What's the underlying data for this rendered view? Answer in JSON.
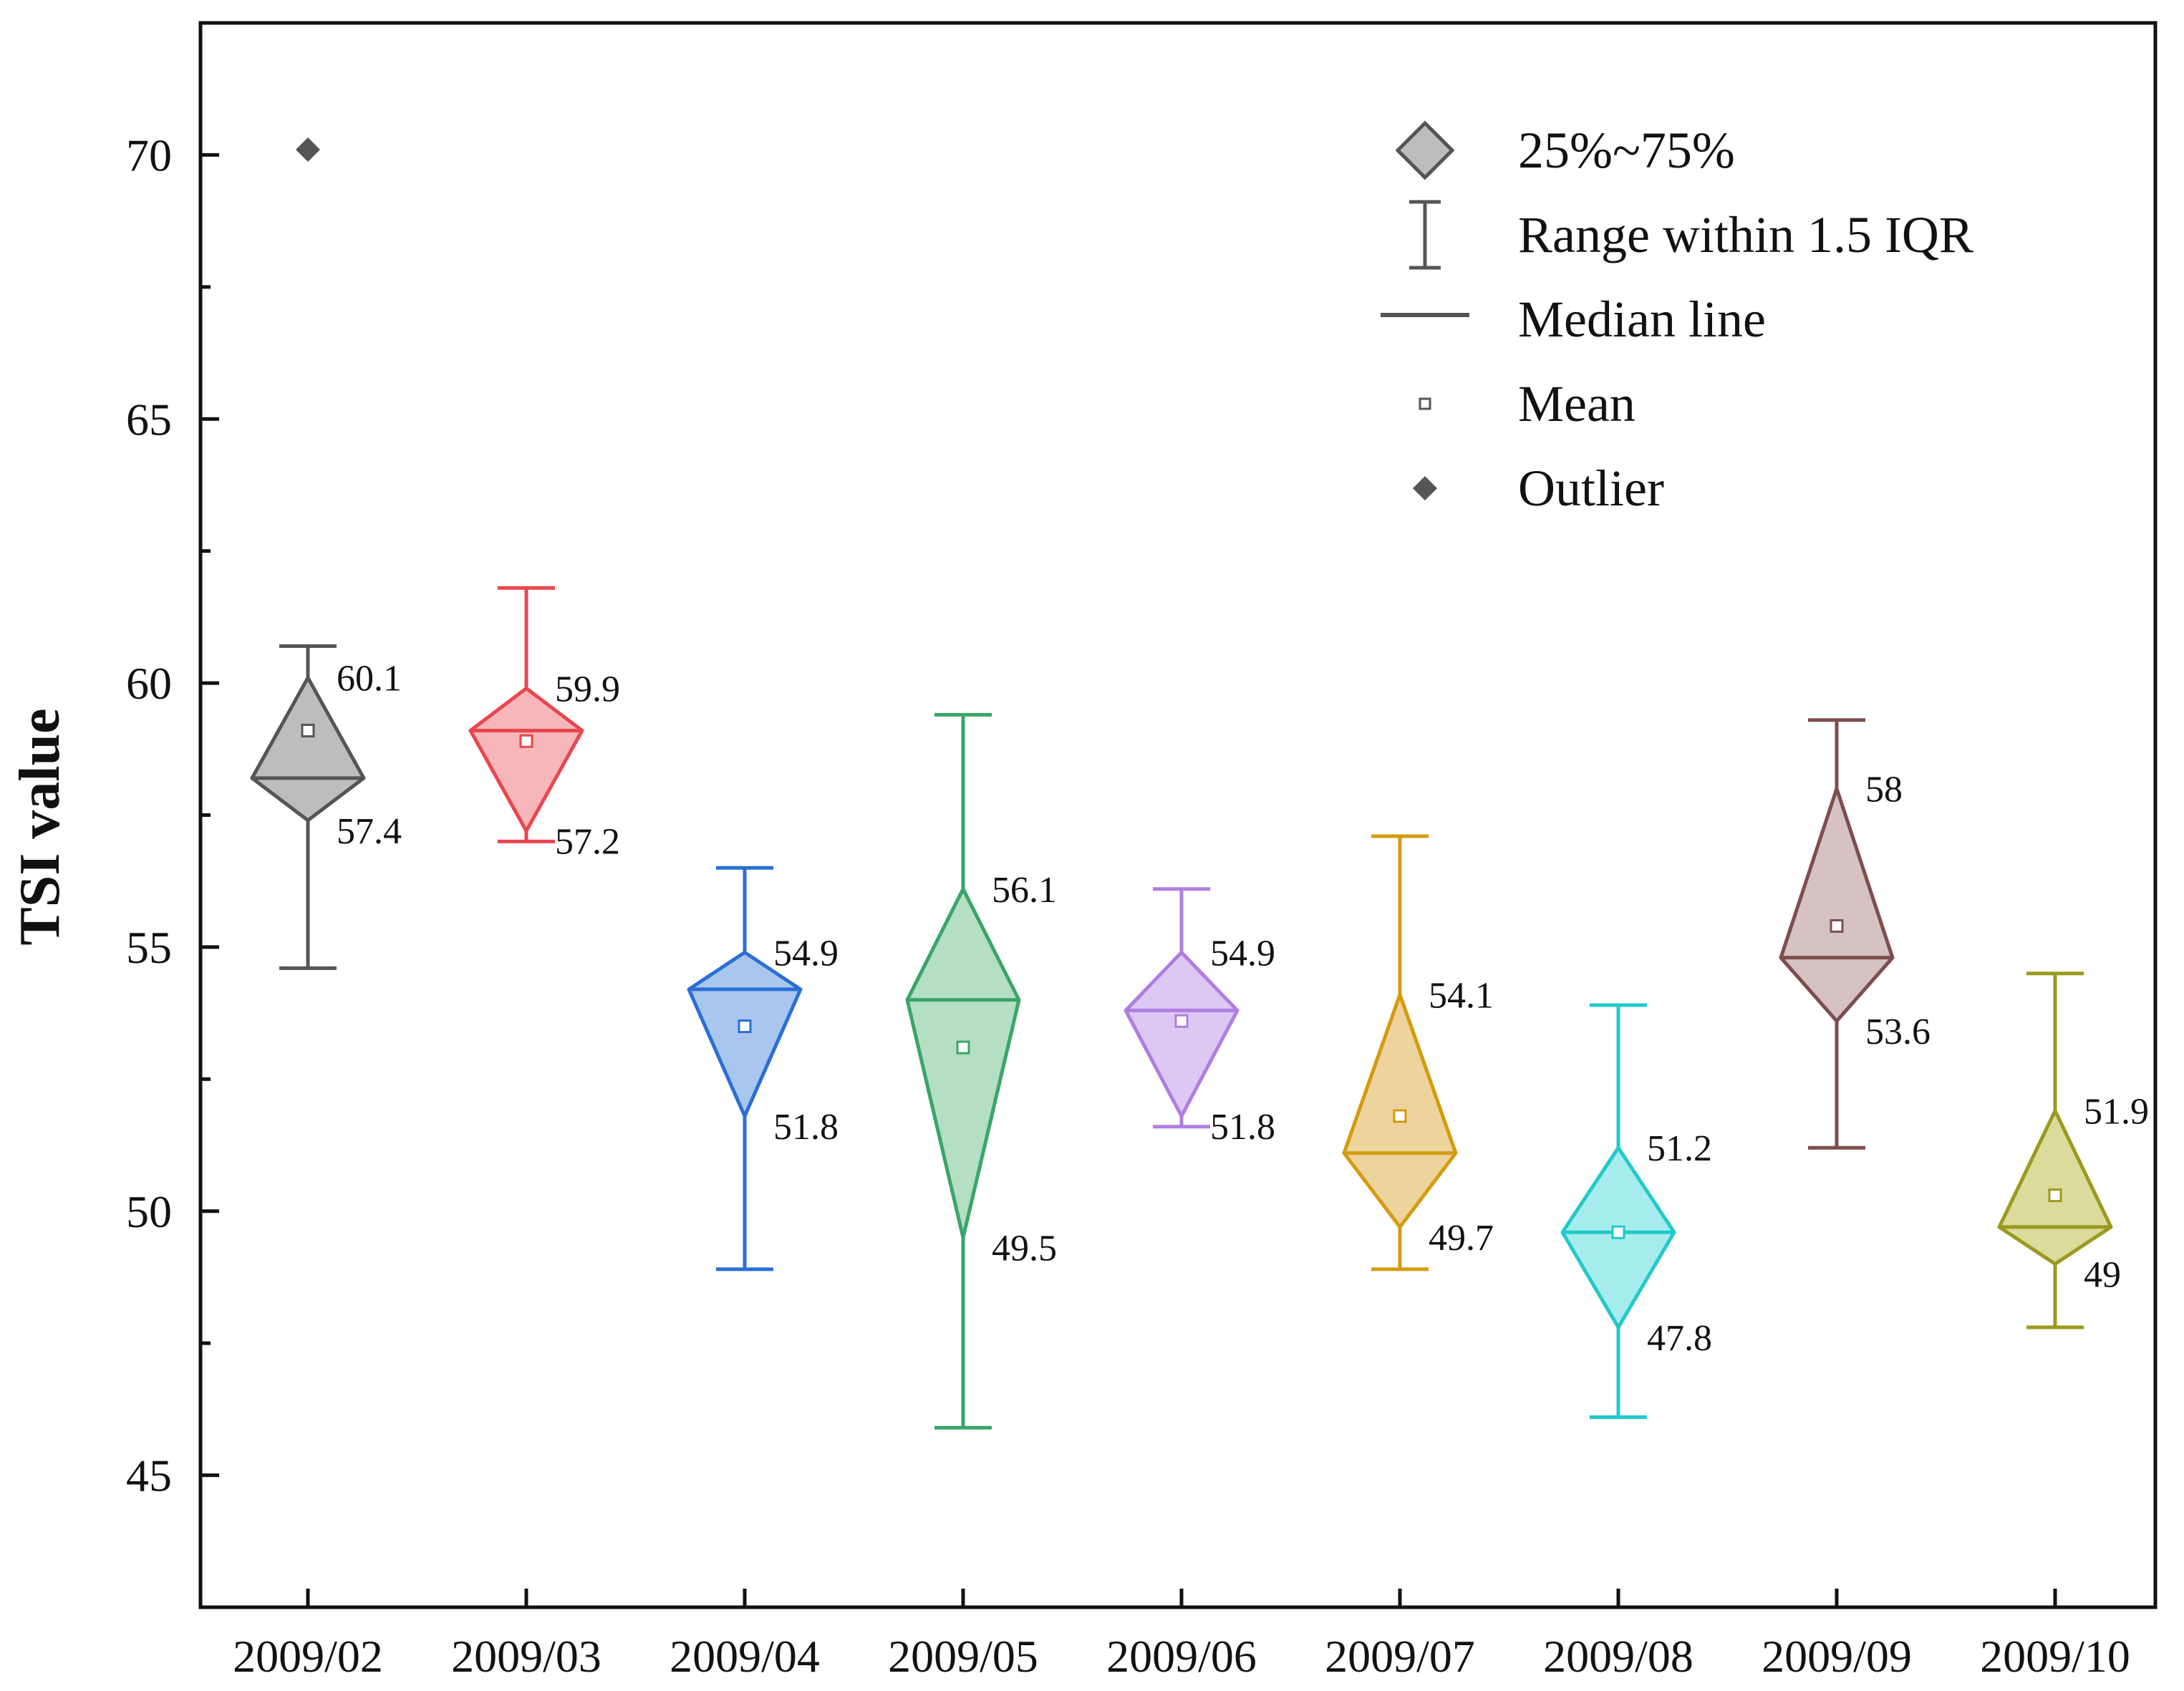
{
  "chart_data": {
    "type": "box",
    "ylabel": "TSI value",
    "xlabel": "",
    "ylim": [
      42.5,
      72.5
    ],
    "yticks": [
      45,
      50,
      55,
      60,
      65,
      70
    ],
    "categories": [
      "2009/02",
      "2009/03",
      "2009/04",
      "2009/05",
      "2009/06",
      "2009/07",
      "2009/08",
      "2009/09",
      "2009/10"
    ],
    "series": [
      {
        "name": "2009/02",
        "color": "#555555",
        "fill": "#bdbdbd",
        "whisker_low": 54.6,
        "q1": 57.4,
        "median": 58.2,
        "q3": 60.1,
        "whisker_high": 60.7,
        "mean": 59.1,
        "outliers": [
          70.1
        ],
        "q3_label": "60.1",
        "q1_label": "57.4"
      },
      {
        "name": "2009/03",
        "color": "#e8474f",
        "fill": "#f7b6b9",
        "whisker_low": 57.0,
        "q1": 57.2,
        "median": 59.1,
        "q3": 59.9,
        "whisker_high": 61.8,
        "mean": 58.9,
        "outliers": [],
        "q3_label": "59.9",
        "q1_label": "57.2"
      },
      {
        "name": "2009/04",
        "color": "#2a6fd6",
        "fill": "#a9c6ef",
        "whisker_low": 48.9,
        "q1": 51.8,
        "median": 54.2,
        "q3": 54.9,
        "whisker_high": 56.5,
        "mean": 53.5,
        "outliers": [],
        "q3_label": "54.9",
        "q1_label": "51.8"
      },
      {
        "name": "2009/05",
        "color": "#3aa56a",
        "fill": "#b4dfc4",
        "whisker_low": 45.9,
        "q1": 49.5,
        "median": 54.0,
        "q3": 56.1,
        "whisker_high": 59.4,
        "mean": 53.1,
        "outliers": [],
        "q3_label": "56.1",
        "q1_label": "49.5"
      },
      {
        "name": "2009/06",
        "color": "#b07ee0",
        "fill": "#ddc8f4",
        "whisker_low": 51.6,
        "q1": 51.8,
        "median": 53.8,
        "q3": 54.9,
        "whisker_high": 56.1,
        "mean": 53.6,
        "outliers": [],
        "q3_label": "54.9",
        "q1_label": "51.8"
      },
      {
        "name": "2009/07",
        "color": "#d49b0e",
        "fill": "#ecd49c",
        "whisker_low": 48.9,
        "q1": 49.7,
        "median": 51.1,
        "q3": 54.1,
        "whisker_high": 57.1,
        "mean": 51.8,
        "outliers": [],
        "q3_label": "54.1",
        "q1_label": "49.7"
      },
      {
        "name": "2009/08",
        "color": "#22c9c9",
        "fill": "#a7ecec",
        "whisker_low": 46.1,
        "q1": 47.8,
        "median": 49.6,
        "q3": 51.2,
        "whisker_high": 53.9,
        "mean": 49.6,
        "outliers": [],
        "q3_label": "51.2",
        "q1_label": "47.8"
      },
      {
        "name": "2009/09",
        "color": "#7d4e4e",
        "fill": "#d7c2c2",
        "whisker_low": 51.2,
        "q1": 53.6,
        "median": 54.8,
        "q3": 58.0,
        "whisker_high": 59.3,
        "mean": 55.4,
        "outliers": [],
        "q3_label": "58",
        "q1_label": "53.6"
      },
      {
        "name": "2009/10",
        "color": "#9a9a1e",
        "fill": "#dbdb9c",
        "whisker_low": 47.8,
        "q1": 49.0,
        "median": 49.7,
        "q3": 51.9,
        "whisker_high": 54.5,
        "mean": 50.3,
        "outliers": [],
        "q3_label": "51.9",
        "q1_label": "49"
      }
    ],
    "legend": {
      "position": "top-right",
      "items": [
        {
          "symbol": "diamond",
          "label": "25%~75%"
        },
        {
          "symbol": "whisker",
          "label": "Range within 1.5 IQR"
        },
        {
          "symbol": "line",
          "label": "Median line"
        },
        {
          "symbol": "mean",
          "label": "Mean"
        },
        {
          "symbol": "outlier",
          "label": "Outlier"
        }
      ]
    },
    "grid": false
  }
}
